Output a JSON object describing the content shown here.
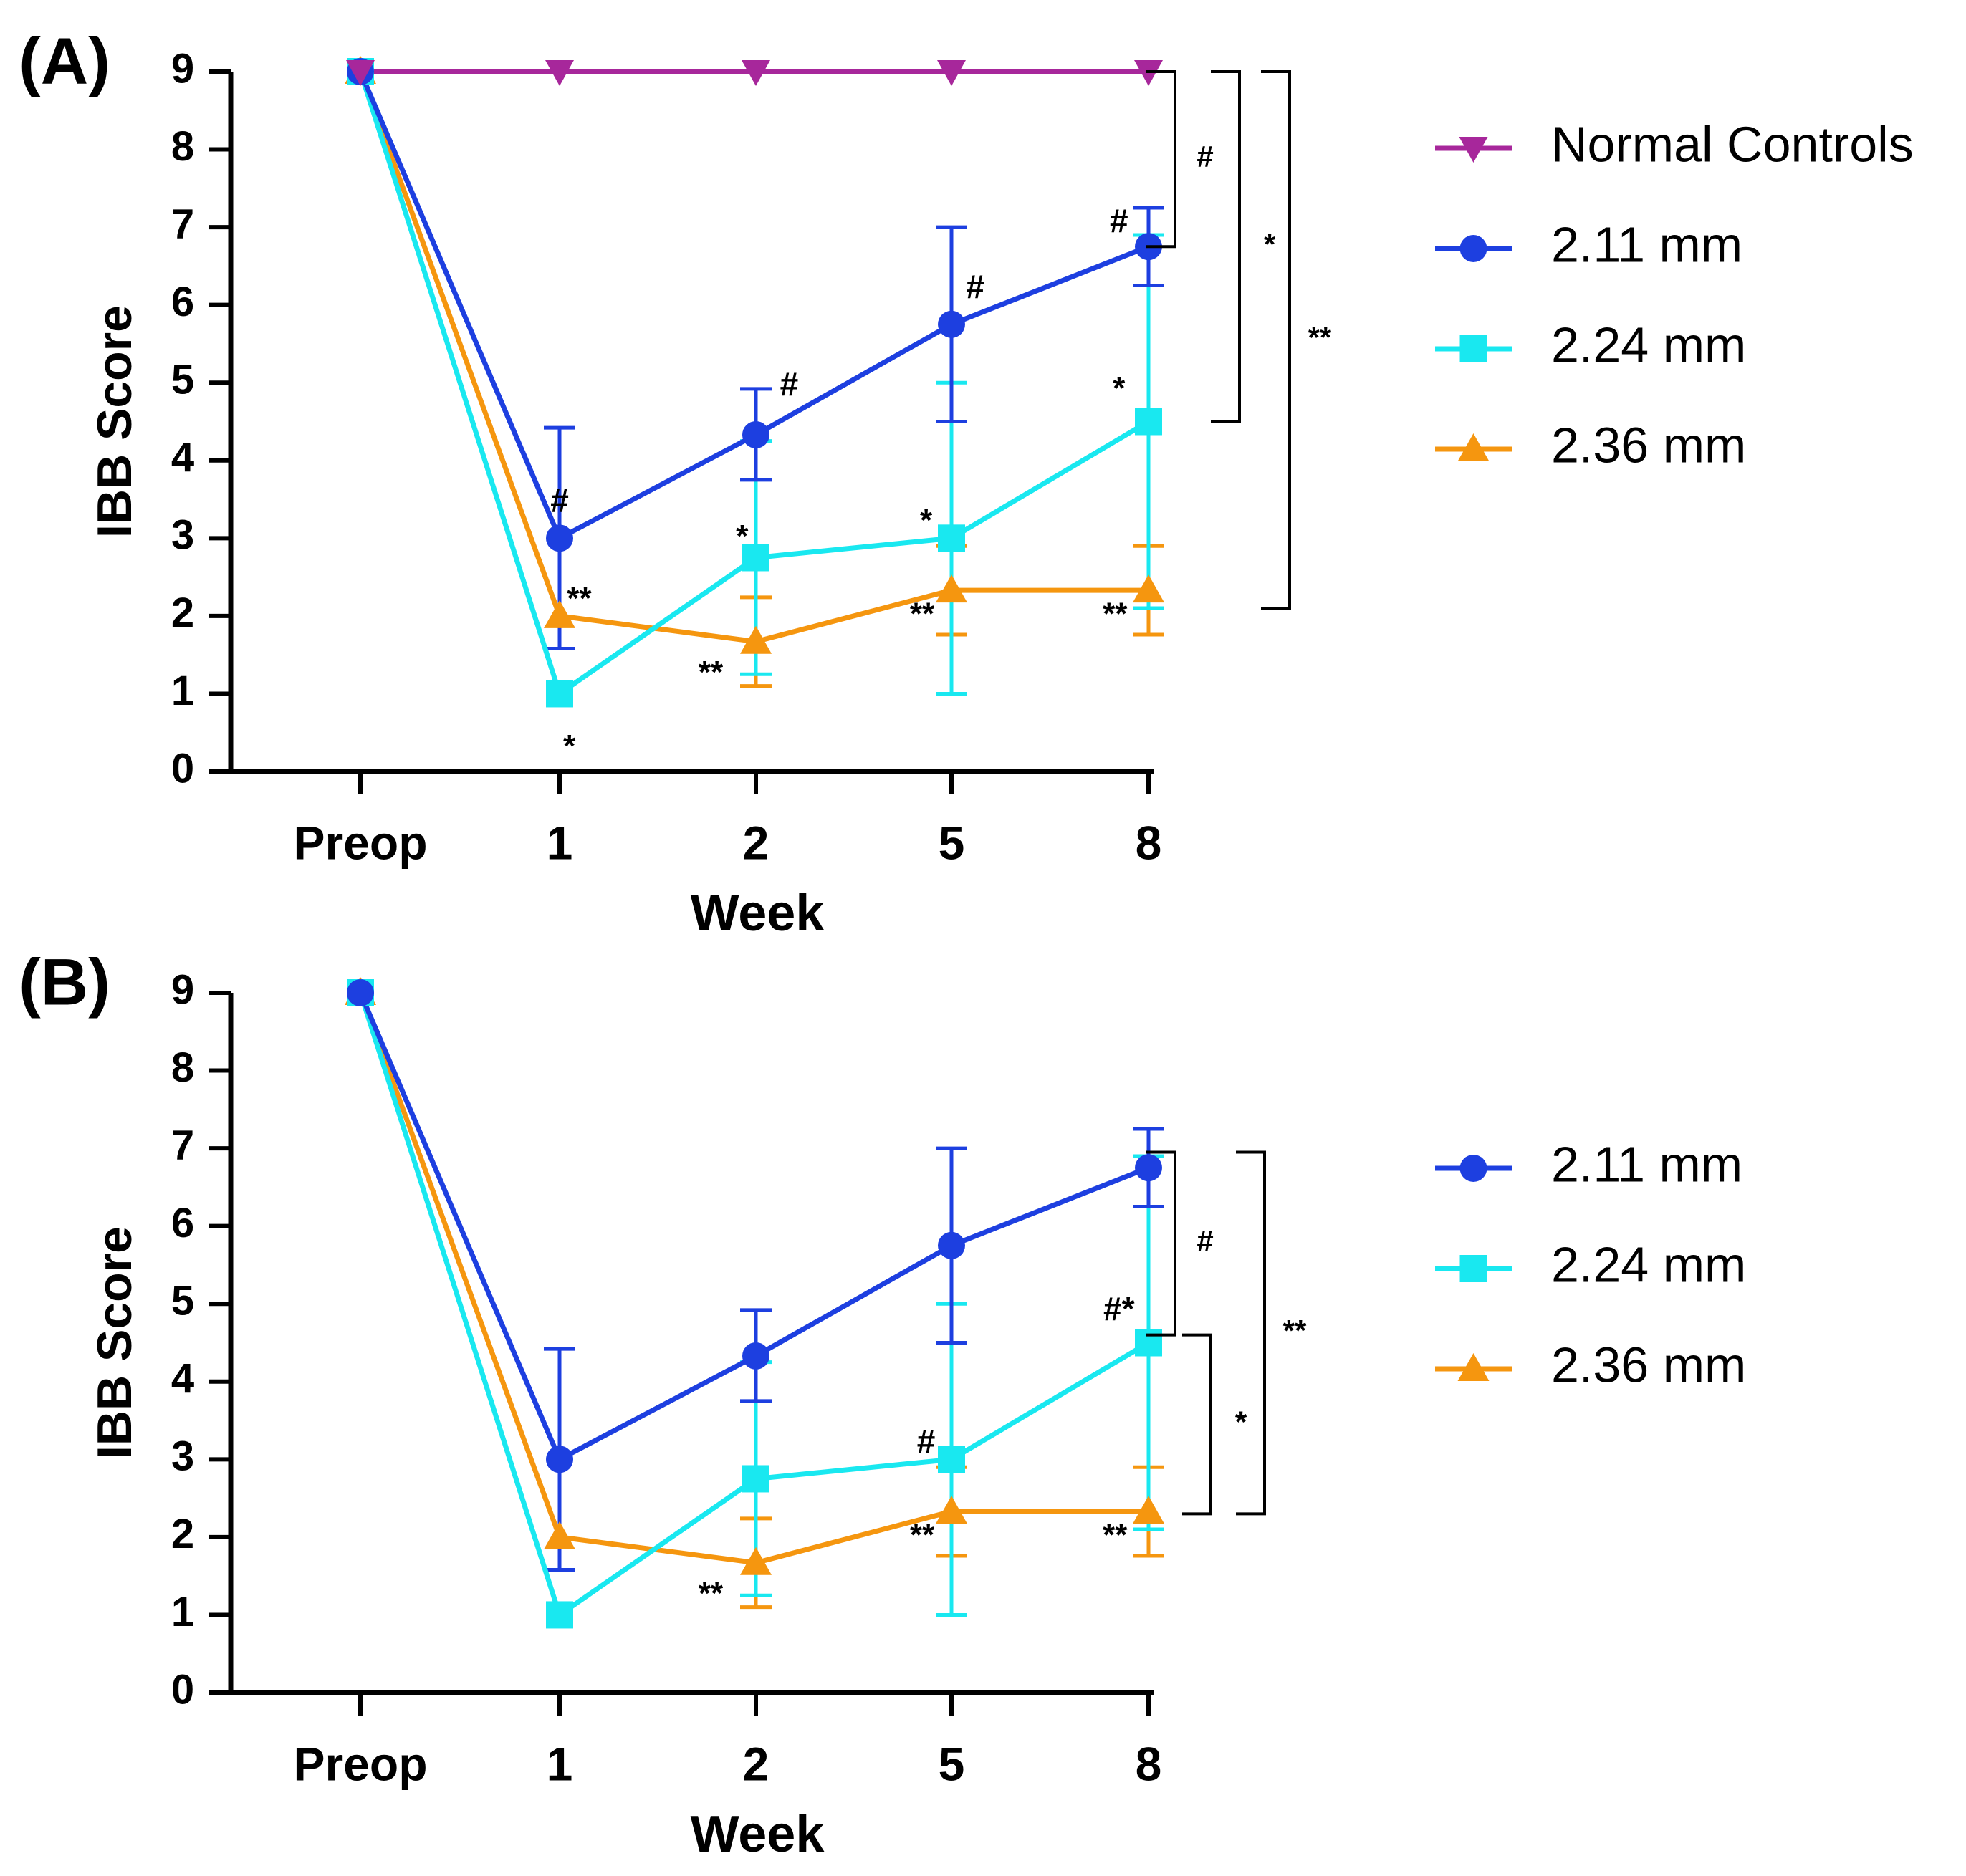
{
  "chart_data": [
    {
      "type": "line",
      "panel_label": "(A)",
      "xlabel": "Week",
      "ylabel": "IBB Score",
      "ylim": [
        0,
        9
      ],
      "yticks": [
        "0",
        "1",
        "2",
        "3",
        "4",
        "5",
        "6",
        "7",
        "8",
        "9"
      ],
      "categories": [
        "Preop",
        "1",
        "2",
        "5",
        "8"
      ],
      "series": [
        {
          "name": "Normal Controls",
          "color": "#a7279b",
          "marker": "triangle-down",
          "values": [
            9,
            9,
            9,
            9,
            9
          ],
          "err_low": [
            null,
            null,
            null,
            null,
            null
          ],
          "err_high": [
            null,
            null,
            null,
            null,
            null
          ]
        },
        {
          "name": "2.11 mm",
          "color": "#1d3fe0",
          "marker": "circle",
          "values": [
            9,
            3,
            4.33,
            5.75,
            6.75
          ],
          "err_low": [
            null,
            1.58,
            3.75,
            4.5,
            6.25
          ],
          "err_high": [
            null,
            4.42,
            4.92,
            7.0,
            7.25
          ]
        },
        {
          "name": "2.24 mm",
          "color": "#19e8f0",
          "marker": "square",
          "values": [
            9,
            1,
            2.75,
            3.0,
            4.5
          ],
          "err_low": [
            null,
            null,
            1.25,
            1.0,
            2.1
          ],
          "err_high": [
            null,
            null,
            4.25,
            5.0,
            6.9
          ]
        },
        {
          "name": "2.36 mm",
          "color": "#f5960f",
          "marker": "triangle-up",
          "values": [
            9,
            2,
            1.67,
            2.33,
            2.33
          ],
          "err_low": [
            null,
            null,
            1.1,
            1.76,
            1.76
          ],
          "err_high": [
            null,
            null,
            2.24,
            2.9,
            2.9
          ]
        }
      ],
      "annotations": [
        {
          "text": "#",
          "x": 1,
          "y": 3.45
        },
        {
          "text": "**",
          "x": 1.1,
          "y": 2.2
        },
        {
          "text": "*",
          "x": 1.05,
          "y": 0.3
        },
        {
          "text": "#",
          "x": 2.17,
          "y": 4.95
        },
        {
          "text": "*",
          "x": 1.93,
          "y": 3.0
        },
        {
          "text": "**",
          "x": 1.77,
          "y": 1.25
        },
        {
          "text": "#",
          "x": 3.12,
          "y": 6.2
        },
        {
          "text": "*",
          "x": 2.87,
          "y": 3.2
        },
        {
          "text": "**",
          "x": 2.85,
          "y": 2.0
        },
        {
          "text": "#",
          "x": 3.85,
          "y": 7.05
        },
        {
          "text": "*",
          "x": 3.85,
          "y": 4.9
        },
        {
          "text": "**",
          "x": 3.83,
          "y": 2.0
        }
      ],
      "brackets": [
        {
          "from": 9,
          "to": 6.75,
          "label": "#"
        },
        {
          "from": 9,
          "to": 4.5,
          "label": "*"
        },
        {
          "from": 9,
          "to": 2.1,
          "label": "**"
        }
      ]
    },
    {
      "type": "line",
      "panel_label": "(B)",
      "xlabel": "Week",
      "ylabel": "IBB Score",
      "ylim": [
        0,
        9
      ],
      "yticks": [
        "0",
        "1",
        "2",
        "3",
        "4",
        "5",
        "6",
        "7",
        "8",
        "9"
      ],
      "categories": [
        "Preop",
        "1",
        "2",
        "5",
        "8"
      ],
      "series": [
        {
          "name": "2.11 mm",
          "color": "#1d3fe0",
          "marker": "circle",
          "values": [
            9,
            3,
            4.33,
            5.75,
            6.75
          ],
          "err_low": [
            null,
            1.58,
            3.75,
            4.5,
            6.25
          ],
          "err_high": [
            null,
            4.42,
            4.92,
            7.0,
            7.25
          ]
        },
        {
          "name": "2.24 mm",
          "color": "#19e8f0",
          "marker": "square",
          "values": [
            9,
            1,
            2.75,
            3.0,
            4.5
          ],
          "err_low": [
            null,
            null,
            1.25,
            1.0,
            2.1
          ],
          "err_high": [
            null,
            null,
            4.25,
            5.0,
            6.9
          ]
        },
        {
          "name": "2.36 mm",
          "color": "#f5960f",
          "marker": "triangle-up",
          "values": [
            9,
            2,
            1.67,
            2.33,
            2.33
          ],
          "err_low": [
            null,
            null,
            1.1,
            1.76,
            1.76
          ],
          "err_high": [
            null,
            null,
            2.24,
            2.9,
            2.9
          ]
        }
      ],
      "annotations": [
        {
          "text": "**",
          "x": 1.77,
          "y": 1.25
        },
        {
          "text": "#",
          "x": 2.87,
          "y": 3.2
        },
        {
          "text": "**",
          "x": 2.85,
          "y": 2.0
        },
        {
          "text": "#*",
          "x": 3.85,
          "y": 4.9
        },
        {
          "text": "**",
          "x": 3.83,
          "y": 2.0
        }
      ],
      "brackets": [
        {
          "from": 6.95,
          "to": 4.6,
          "label": "#"
        },
        {
          "from": 4.6,
          "to": 2.3,
          "label": "*"
        },
        {
          "from": 6.95,
          "to": 2.3,
          "label": "**"
        }
      ]
    }
  ]
}
